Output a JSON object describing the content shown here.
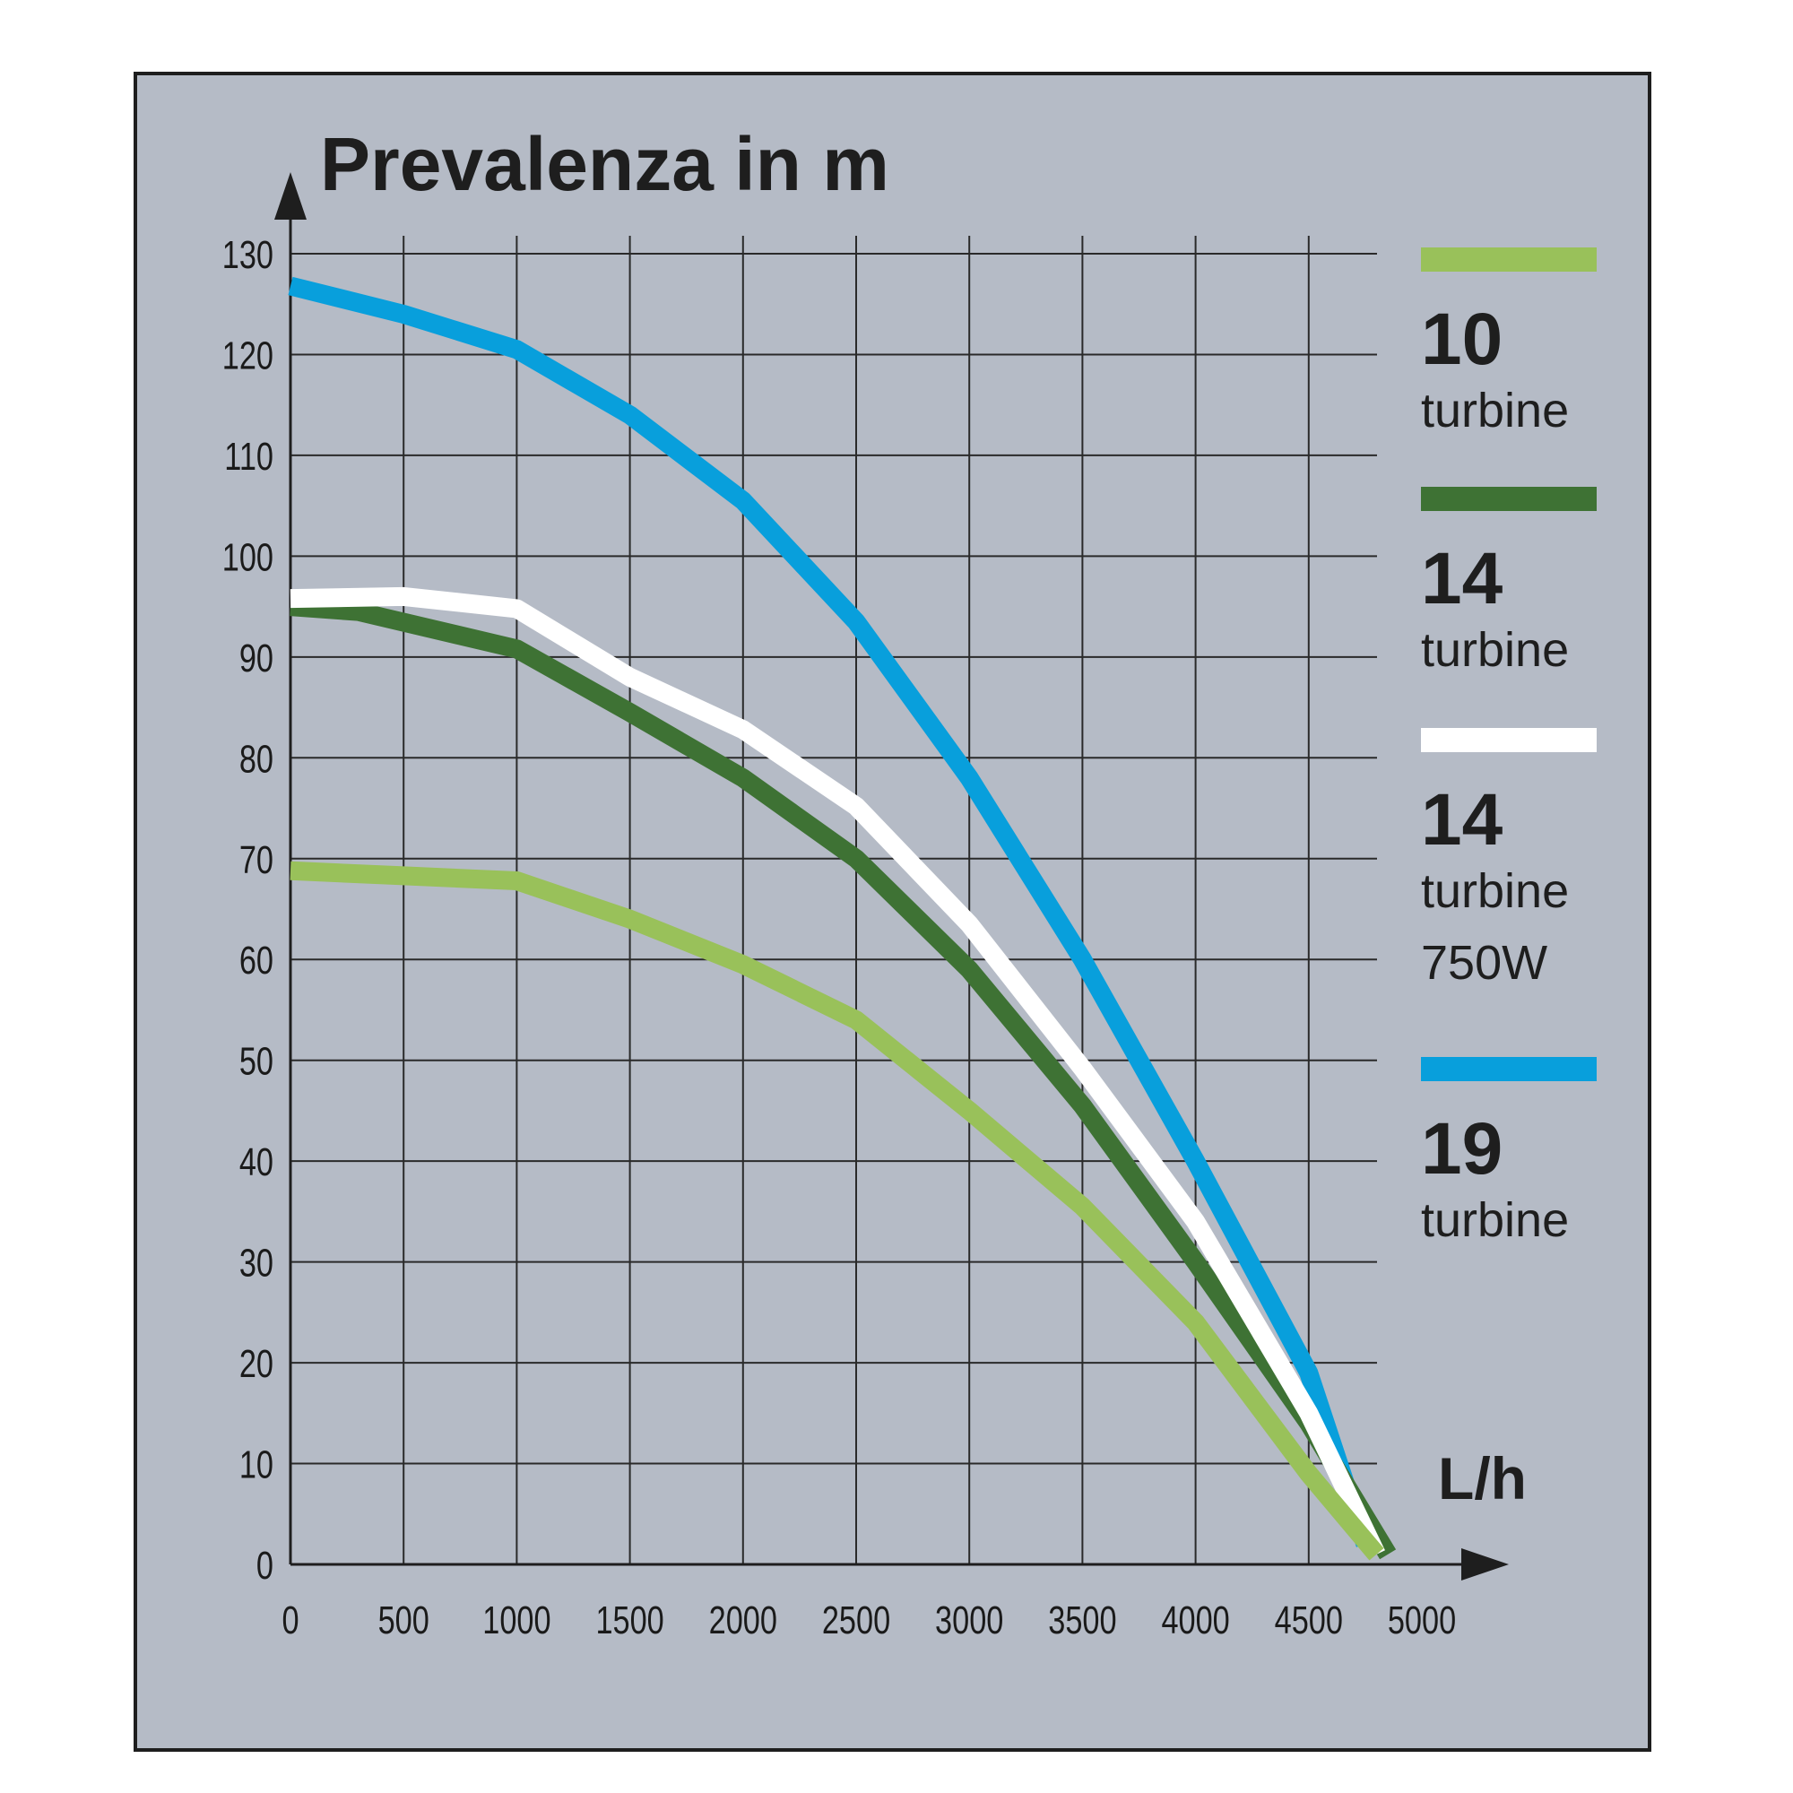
{
  "chart_data": {
    "type": "line",
    "title": "Prevalenza in  m",
    "xlabel": "L/h",
    "ylabel": "",
    "xlim": [
      0,
      5000
    ],
    "ylim": [
      0,
      130
    ],
    "x_ticks": [
      "0",
      "500",
      "1000",
      "1500",
      "2000",
      "2500",
      "3000",
      "3500",
      "4000",
      "4500",
      "5000"
    ],
    "y_ticks": [
      "0",
      "10",
      "20",
      "30",
      "40",
      "50",
      "60",
      "70",
      "80",
      "90",
      "100",
      "110",
      "120",
      "130"
    ],
    "grid": true,
    "legend_position": "right",
    "colors": {
      "background": "#b5bbc6",
      "grid": "#2a2a2a",
      "light_green": "#99c15a",
      "dark_green": "#3e7234",
      "white": "#ffffff",
      "blue": "#089fdc"
    },
    "series": [
      {
        "legend_num": "19",
        "legend_lines": [
          "turbine"
        ],
        "color": "#089fdc",
        "x": [
          0,
          500,
          1000,
          1500,
          2000,
          2500,
          3000,
          3500,
          4000,
          4500,
          4750
        ],
        "y": [
          126.8,
          124,
          120.5,
          114,
          105.5,
          93.5,
          78,
          60,
          40,
          19,
          2
        ]
      },
      {
        "legend_num": "14",
        "legend_lines": [
          "turbine"
        ],
        "color": "#3e7234",
        "x": [
          0,
          300,
          1000,
          1500,
          2000,
          2500,
          3000,
          3500,
          4000,
          4500,
          4850
        ],
        "y": [
          95,
          94.5,
          90.8,
          84.5,
          78,
          70,
          59,
          45.5,
          30,
          14,
          1
        ]
      },
      {
        "legend_num": "14",
        "legend_lines": [
          "turbine",
          "750W"
        ],
        "color": "#ffffff",
        "x": [
          0,
          500,
          1000,
          1500,
          2000,
          2500,
          3000,
          3500,
          4000,
          4500,
          4800
        ],
        "y": [
          95.8,
          96,
          94.8,
          88,
          82.8,
          75.2,
          63.5,
          49.2,
          34,
          15,
          1
        ]
      },
      {
        "legend_num": "10",
        "legend_lines": [
          "turbine"
        ],
        "color": "#99c15a",
        "x": [
          0,
          500,
          1000,
          1500,
          2000,
          2500,
          3000,
          3500,
          4000,
          4500,
          4800
        ],
        "y": [
          68.8,
          68.3,
          67.8,
          64,
          59.5,
          54,
          45,
          35.5,
          24,
          9,
          1
        ]
      }
    ]
  }
}
